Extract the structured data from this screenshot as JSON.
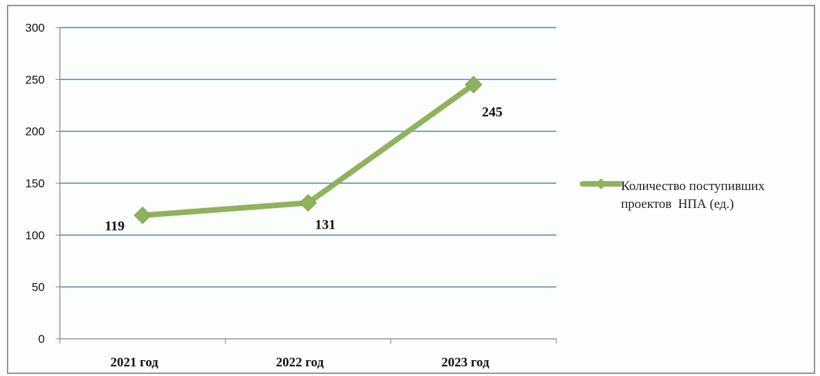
{
  "chart_data": {
    "type": "line",
    "categories": [
      "2021 год",
      "2022 год",
      "2023 год"
    ],
    "series": [
      {
        "name": "Количество поступивших проектов  НПА (ед.)",
        "values": [
          119,
          131,
          245
        ],
        "color": "#8fb35a"
      }
    ],
    "data_labels": [
      "119",
      "131",
      "245"
    ],
    "y_ticks": [
      "0",
      "50",
      "100",
      "150",
      "200",
      "250",
      "300"
    ],
    "ylim": [
      0,
      300
    ],
    "title": "",
    "xlabel": "",
    "ylabel": "",
    "grid": true,
    "legend_position": "right"
  },
  "colors": {
    "gridline": "#4f81bd",
    "axis": "#7f7f7f",
    "border": "#6f6f6f",
    "series": "#8fb35a"
  }
}
